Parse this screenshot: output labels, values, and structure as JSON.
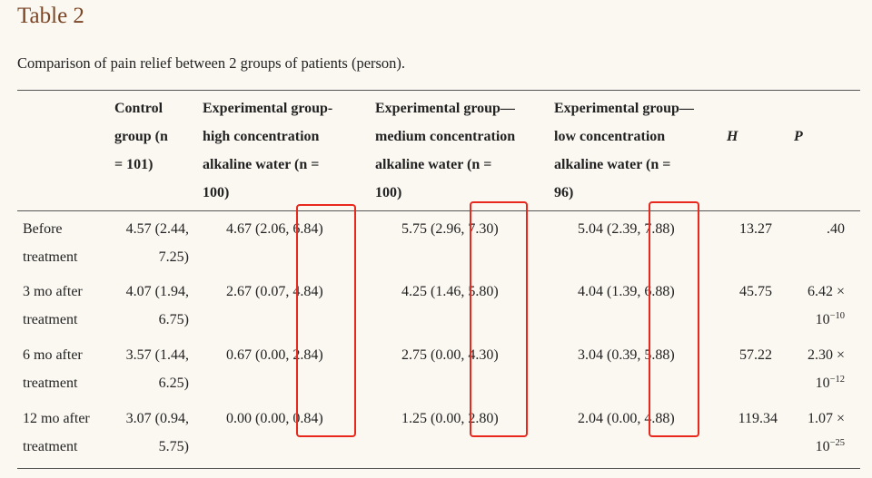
{
  "table_title": "Table 2",
  "caption": "Comparison of pain relief between 2 groups of patients (person).",
  "headers": {
    "control": [
      "Control",
      "group (n",
      "= 101)"
    ],
    "high": [
      "Experimental group-",
      "high concentration",
      "alkaline water (n =",
      "100)"
    ],
    "medium": [
      "Experimental group—",
      "medium concentration",
      "alkaline water (n =",
      "100)"
    ],
    "low": [
      "Experimental group—",
      "low concentration",
      "alkaline water (n =",
      "96)"
    ],
    "h": "H",
    "p": "P"
  },
  "rows": [
    {
      "label": [
        "Before",
        "treatment"
      ],
      "control": [
        "4.57 (2.44,",
        "7.25)"
      ],
      "high": "4.67 (2.06, 6.84)",
      "medium": "5.75 (2.96, 7.30)",
      "low": "5.04 (2.39, 7.88)",
      "h": "13.27",
      "p_line1": ".40",
      "p_base": "",
      "p_exp": ""
    },
    {
      "label": [
        "3 mo after",
        "treatment"
      ],
      "control": [
        "4.07 (1.94,",
        "6.75)"
      ],
      "high": "2.67 (0.07, 4.84)",
      "medium": "4.25 (1.46, 5.80)",
      "low": "4.04 (1.39, 6.88)",
      "h": "45.75",
      "p_line1": "6.42 ×",
      "p_base": "10",
      "p_exp": "−10"
    },
    {
      "label": [
        "6 mo after",
        "treatment"
      ],
      "control": [
        "3.57 (1.44,",
        "6.25)"
      ],
      "high": "0.67 (0.00, 2.84)",
      "medium": "2.75 (0.00, 4.30)",
      "low": "3.04 (0.39, 5.88)",
      "h": "57.22",
      "p_line1": "2.30 ×",
      "p_base": "10",
      "p_exp": "−12"
    },
    {
      "label": [
        "12 mo after",
        "treatment"
      ],
      "control": [
        "3.07 (0.94,",
        "5.75)"
      ],
      "high": "0.00 (0.00, 0.84)",
      "medium": "1.25 (0.00, 2.80)",
      "low": "2.04 (0.00, 4.88)",
      "h": "119.34",
      "p_line1": "1.07 ×",
      "p_base": "10",
      "p_exp": "−25"
    }
  ],
  "highlight_color": "#e8271d",
  "title_color": "#7b4627"
}
